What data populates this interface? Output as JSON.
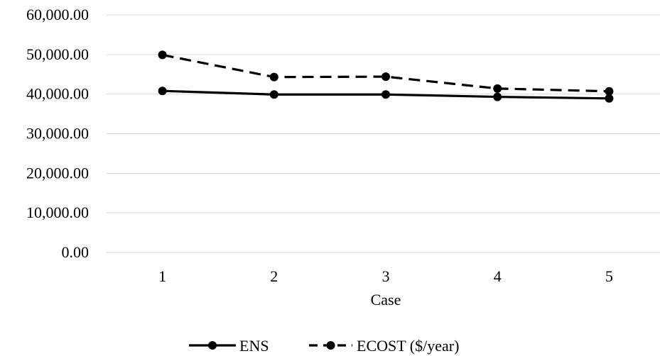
{
  "chart_data": {
    "type": "line",
    "title": "",
    "xlabel": "Case",
    "ylabel": "",
    "categories": [
      "1",
      "2",
      "3",
      "4",
      "5"
    ],
    "ylim": [
      0,
      60000
    ],
    "y_ticks": [
      "0.00",
      "10,000.00",
      "20,000.00",
      "30,000.00",
      "40,000.00",
      "50,000.00",
      "60,000.00"
    ],
    "grid": "horizontal",
    "legend_position": "bottom",
    "series": [
      {
        "name": "ENS",
        "values": [
          40800,
          39900,
          39900,
          39300,
          38900
        ],
        "style": "solid",
        "color": "#000000",
        "marker": "circle"
      },
      {
        "name": "ECOST ($/year)",
        "values": [
          49900,
          44300,
          44400,
          41400,
          40700
        ],
        "style": "dashed",
        "color": "#000000",
        "marker": "circle"
      }
    ]
  }
}
